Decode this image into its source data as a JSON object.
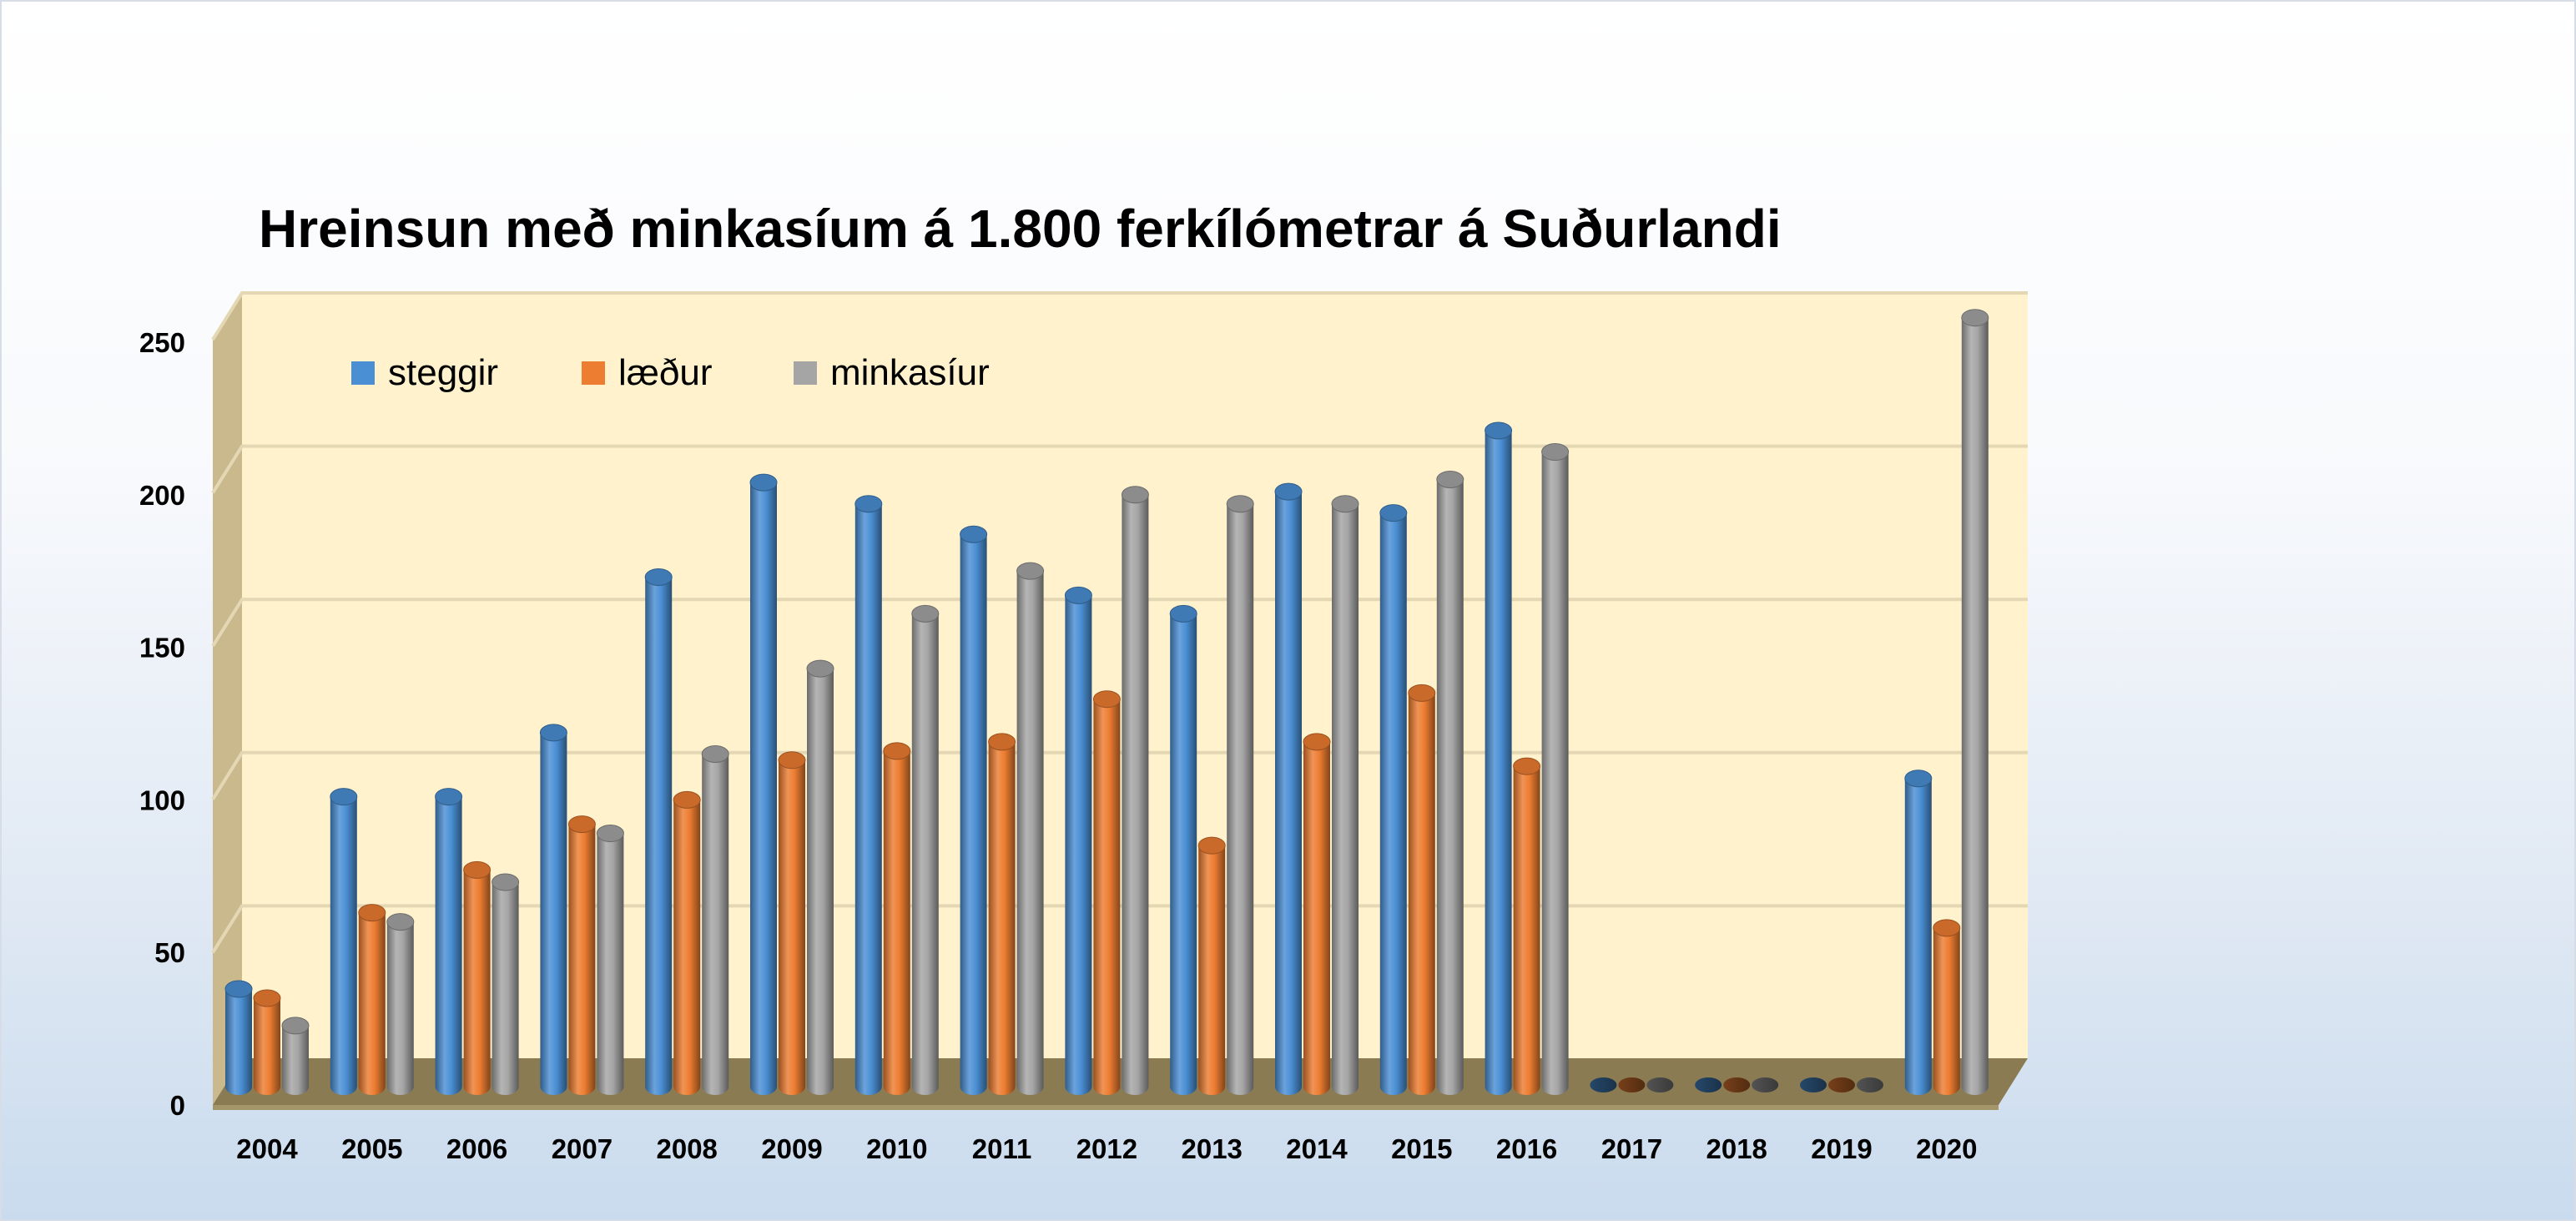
{
  "chart_data": {
    "type": "bar",
    "title": "Hreinsun með minkasíum á 1.800 ferkílómetrar á Suðurlandi",
    "xlabel": "",
    "ylabel": "",
    "categories": [
      "2004",
      "2005",
      "2006",
      "2007",
      "2008",
      "2009",
      "2010",
      "2011",
      "2012",
      "2013",
      "2014",
      "2015",
      "2016",
      "2017",
      "2018",
      "2019",
      "2020"
    ],
    "series": [
      {
        "name": "steggir",
        "color": "#4a8fd4",
        "values": [
          32,
          95,
          95,
          116,
          167,
          198,
          191,
          181,
          161,
          155,
          195,
          188,
          215,
          0,
          0,
          0,
          101
        ]
      },
      {
        "name": "læður",
        "color": "#ed7d31",
        "values": [
          29,
          57,
          71,
          86,
          94,
          107,
          110,
          113,
          127,
          79,
          113,
          129,
          105,
          0,
          0,
          0,
          52
        ]
      },
      {
        "name": "minkasíur",
        "color": "#a5a5a5",
        "values": [
          20,
          54,
          67,
          83,
          109,
          137,
          155,
          169,
          194,
          191,
          191,
          199,
          208,
          0,
          0,
          0,
          252
        ]
      }
    ],
    "yticks": [
      "0",
      "50",
      "100",
      "150",
      "200",
      "250"
    ],
    "ylim": [
      0,
      250
    ],
    "grid": true,
    "legend_position": "top-left inside plot",
    "plot_background": "#fff2cc",
    "style": "3d-cylinder"
  }
}
